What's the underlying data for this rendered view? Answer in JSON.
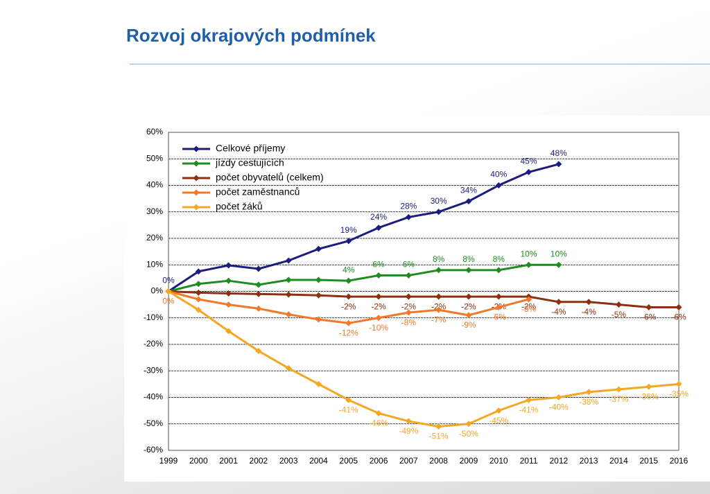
{
  "header": {
    "title": "Rozvoj okrajových podmínek"
  },
  "chart_data": {
    "type": "line",
    "categories": [
      "1999",
      "2000",
      "2001",
      "2002",
      "2003",
      "2004",
      "2005",
      "2006",
      "2007",
      "2008",
      "2009",
      "2010",
      "2011",
      "2012",
      "2013",
      "2014",
      "2015",
      "2016"
    ],
    "ylim": [
      -60,
      60
    ],
    "yticks": [
      {
        "value": -60,
        "label": "-60%"
      },
      {
        "value": -50,
        "label": "-50%"
      },
      {
        "value": -40,
        "label": "-40%"
      },
      {
        "value": -30,
        "label": "-30%"
      },
      {
        "value": -20,
        "label": "-20%"
      },
      {
        "value": -10,
        "label": "-10%"
      },
      {
        "value": 0,
        "label": "0%"
      },
      {
        "value": 10,
        "label": "10%"
      },
      {
        "value": 20,
        "label": "20%"
      },
      {
        "value": 30,
        "label": "30%"
      },
      {
        "value": 40,
        "label": "40%"
      },
      {
        "value": 50,
        "label": "50%"
      },
      {
        "value": 60,
        "label": "60%"
      }
    ],
    "grid": true,
    "legend": "upper left",
    "series": [
      {
        "name": "Celkové příjemy",
        "color": "#1c1c80",
        "values": [
          0,
          7.5,
          9.8,
          8.5,
          11.6,
          16,
          19,
          24,
          28,
          30,
          34,
          40,
          45,
          48,
          null,
          null,
          null,
          null
        ],
        "value_labels": [
          "0%",
          null,
          null,
          null,
          null,
          null,
          "19%",
          "24%",
          "28%",
          "30%",
          "34%",
          "40%",
          "45%",
          "48%",
          null,
          null,
          null,
          null
        ]
      },
      {
        "name": "jízdy cestujících",
        "color": "#1e8c1e",
        "values": [
          0,
          2.8,
          4,
          2.5,
          4.3,
          4.3,
          4,
          6,
          6,
          8,
          8,
          8,
          10,
          10,
          null,
          null,
          null,
          null
        ],
        "value_labels": [
          null,
          null,
          null,
          null,
          null,
          null,
          "4%",
          "6%",
          "6%",
          "8%",
          "8%",
          "8%",
          "10%",
          "10%",
          null,
          null,
          null,
          null
        ]
      },
      {
        "name": "počet obyvatelů (celkem)",
        "color": "#8b3010",
        "values": [
          0,
          -0.5,
          -0.8,
          -1,
          -1.2,
          -1.5,
          -2,
          -2,
          -2,
          -2,
          -2,
          -2,
          -2,
          -4,
          -4,
          -5,
          -6,
          -6
        ],
        "value_labels": [
          null,
          null,
          null,
          null,
          null,
          null,
          "-2%",
          "-2%",
          "-2%",
          "-2%",
          "-2%",
          "-2%",
          "-2%",
          "-4%",
          "-4%",
          "-5%",
          "-6%",
          "-6%"
        ]
      },
      {
        "name": "počet zaměstnanců",
        "color": "#f07828",
        "values": [
          0,
          -3,
          -5,
          -6.5,
          -8.7,
          -10.6,
          -12,
          -10,
          -8,
          -7,
          -9,
          -6,
          -3,
          null,
          null,
          null,
          null,
          null
        ],
        "value_labels": [
          "0%",
          null,
          null,
          null,
          null,
          null,
          "-12%",
          "-10%",
          "-8%",
          "-7%",
          "-9%",
          "-6%",
          "-3%",
          null,
          null,
          null,
          null,
          null
        ]
      },
      {
        "name": "počet žáků",
        "color": "#f5a623",
        "values": [
          0,
          -7,
          -15,
          -22.5,
          -29,
          -35,
          -41,
          -46,
          -49,
          -51,
          -50,
          -45,
          -41,
          -40,
          -38,
          -37,
          -36,
          -35
        ],
        "value_labels": [
          null,
          null,
          null,
          null,
          null,
          null,
          "-41%",
          "-46%",
          "-49%",
          "-51%",
          "-50%",
          "-45%",
          "-41%",
          "-40%",
          "-38%",
          "-37%",
          "-36%",
          "-35%"
        ]
      }
    ]
  }
}
